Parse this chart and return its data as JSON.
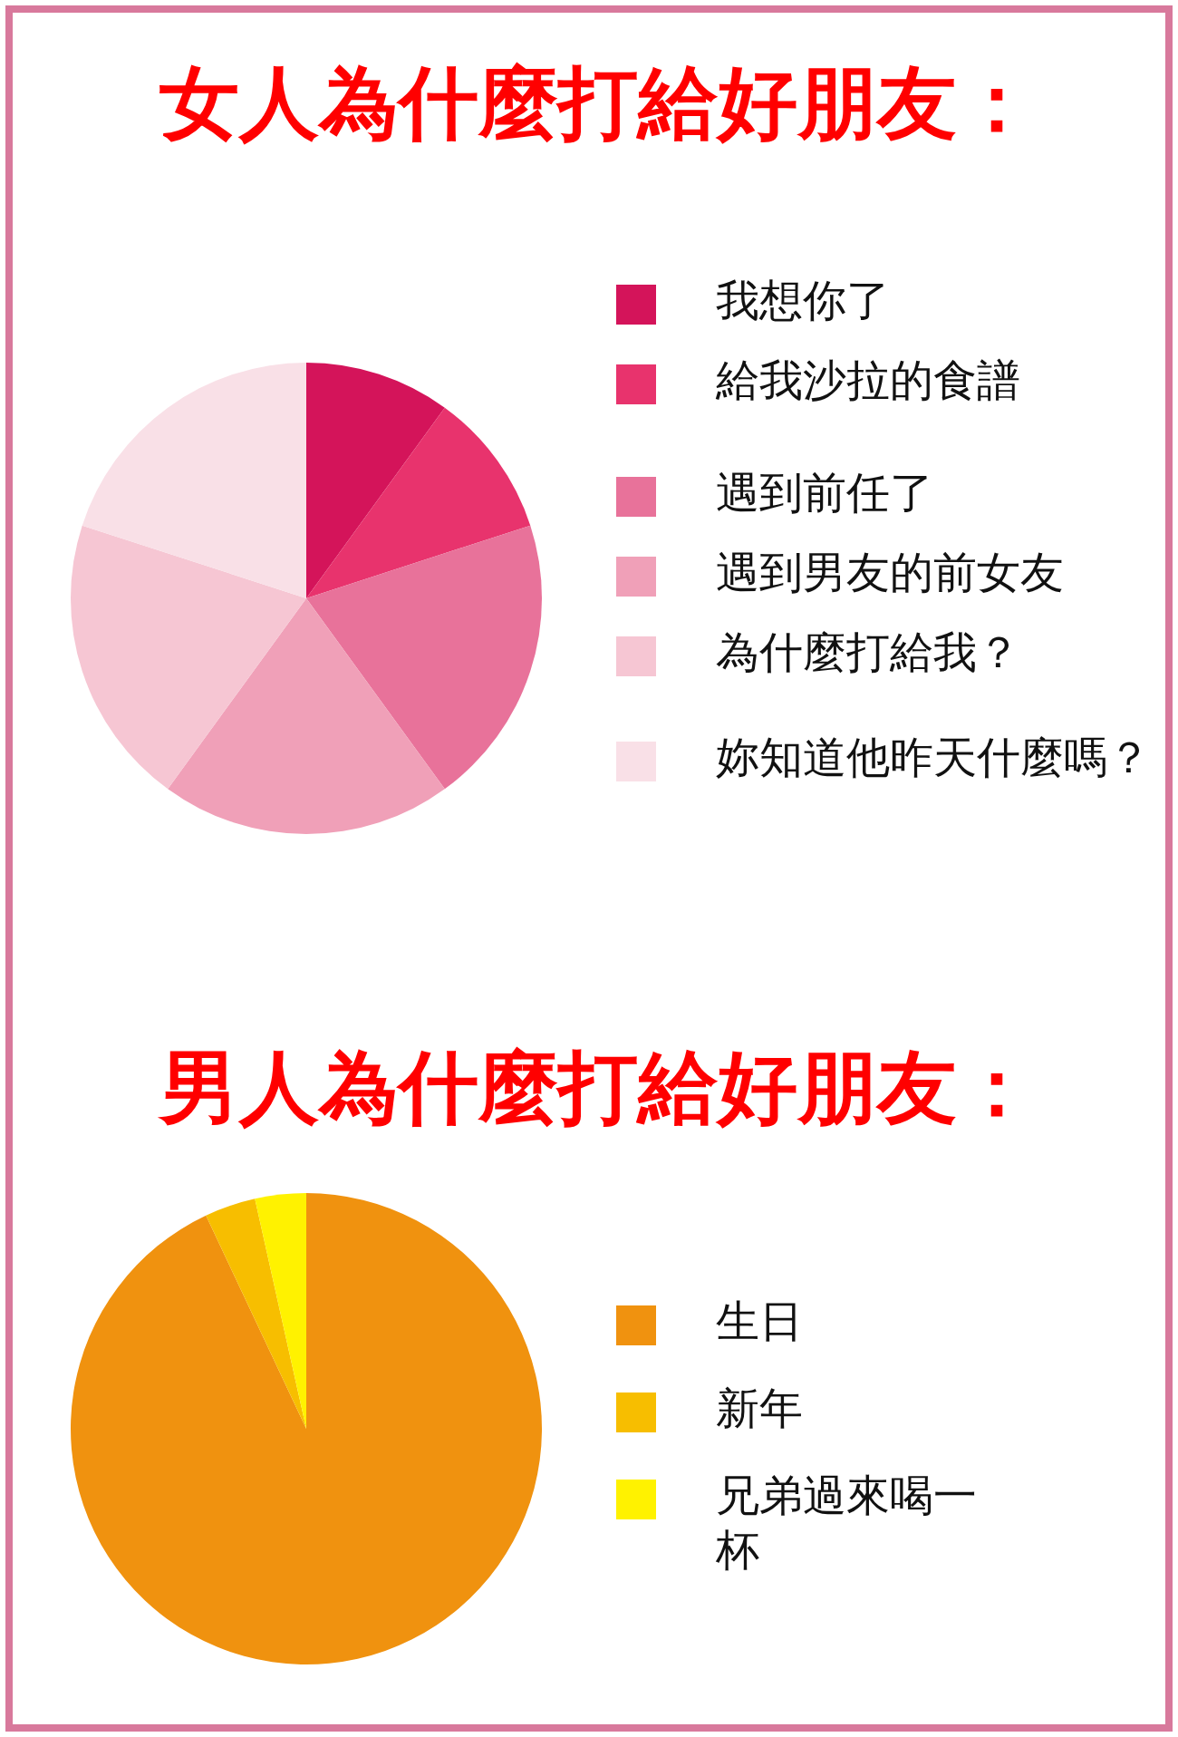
{
  "chart_data": [
    {
      "type": "pie",
      "title": "女人為什麼打給好朋友：",
      "legend": "right",
      "categories": [
        "我想你了",
        "給我沙拉的食譜",
        "遇到前任了",
        "遇到男友的前女友",
        "為什麼打給我？",
        "妳知道他昨天什麼嗎？"
      ],
      "values": [
        10,
        10,
        20,
        20,
        20,
        20
      ],
      "colors": [
        "#d4145a",
        "#e8336d",
        "#e8729a",
        "#f0a0b8",
        "#f6c6d3",
        "#f9e0e7"
      ]
    },
    {
      "type": "pie",
      "title": "男人為什麼打給好朋友：",
      "legend": "right",
      "categories": [
        "生日",
        "新年",
        "兄弟過來喝一杯"
      ],
      "values": [
        93,
        3.5,
        3.5
      ],
      "colors": [
        "#f0920f",
        "#f7be00",
        "#fff200"
      ]
    }
  ]
}
